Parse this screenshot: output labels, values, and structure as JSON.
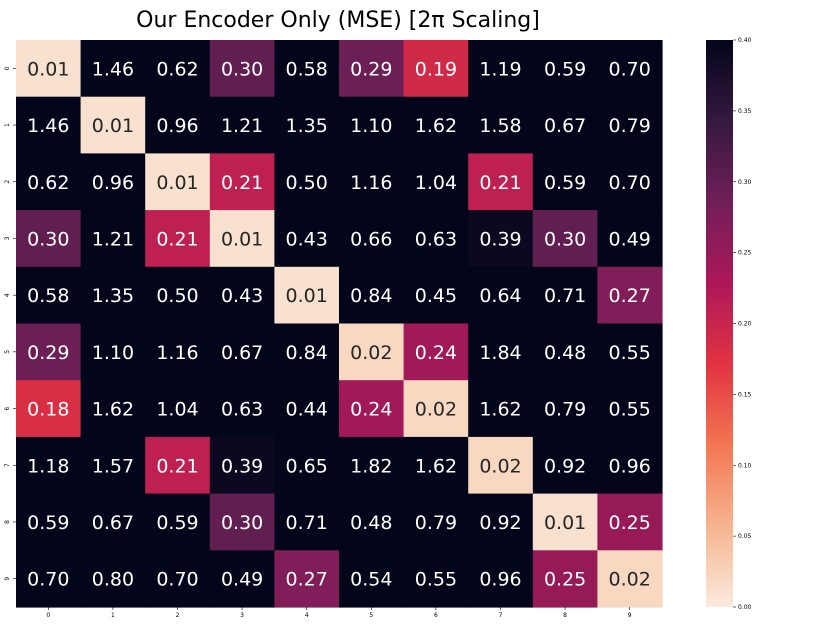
{
  "chart_data": {
    "type": "heatmap",
    "title": "Our Encoder Only (MSE) [2π Scaling]",
    "xlabel": "",
    "ylabel": "",
    "x_tick_labels": [
      "0",
      "1",
      "2",
      "3",
      "4",
      "5",
      "6",
      "7",
      "8",
      "9"
    ],
    "y_tick_labels": [
      "0",
      "1",
      "2",
      "3",
      "4",
      "5",
      "6",
      "7",
      "8",
      "9"
    ],
    "values": [
      [
        0.01,
        1.46,
        0.62,
        0.3,
        0.58,
        0.29,
        0.19,
        1.19,
        0.59,
        0.7
      ],
      [
        1.46,
        0.01,
        0.96,
        1.21,
        1.35,
        1.1,
        1.62,
        1.58,
        0.67,
        0.79
      ],
      [
        0.62,
        0.96,
        0.01,
        0.21,
        0.5,
        1.16,
        1.04,
        0.21,
        0.59,
        0.7
      ],
      [
        0.3,
        1.21,
        0.21,
        0.01,
        0.43,
        0.66,
        0.63,
        0.39,
        0.3,
        0.49
      ],
      [
        0.58,
        1.35,
        0.5,
        0.43,
        0.01,
        0.84,
        0.45,
        0.64,
        0.71,
        0.27
      ],
      [
        0.29,
        1.1,
        1.16,
        0.67,
        0.84,
        0.02,
        0.24,
        1.84,
        0.48,
        0.55
      ],
      [
        0.18,
        1.62,
        1.04,
        0.63,
        0.44,
        0.24,
        0.02,
        1.62,
        0.79,
        0.55
      ],
      [
        1.18,
        1.57,
        0.21,
        0.39,
        0.65,
        1.82,
        1.62,
        0.02,
        0.92,
        0.96
      ],
      [
        0.59,
        0.67,
        0.59,
        0.3,
        0.71,
        0.48,
        0.79,
        0.92,
        0.01,
        0.25
      ],
      [
        0.7,
        0.8,
        0.7,
        0.49,
        0.27,
        0.54,
        0.55,
        0.96,
        0.25,
        0.02
      ]
    ],
    "value_format": "0.00",
    "colorbar": {
      "vmin": 0.0,
      "vmax": 0.4,
      "ticks": [
        0.0,
        0.05,
        0.1,
        0.15,
        0.2,
        0.25,
        0.3,
        0.35,
        0.4
      ],
      "tick_labels": [
        "0.00",
        "0.05",
        "0.10",
        "0.15",
        "0.20",
        "0.25",
        "0.30",
        "0.35",
        "0.40"
      ],
      "colormap": "rocket_r",
      "color_stops": [
        "#faebdd",
        "#f6b48f",
        "#f37651",
        "#e13342",
        "#ad1759",
        "#701f57",
        "#35193e",
        "#03051a"
      ]
    },
    "grid": false,
    "legend": "none"
  }
}
